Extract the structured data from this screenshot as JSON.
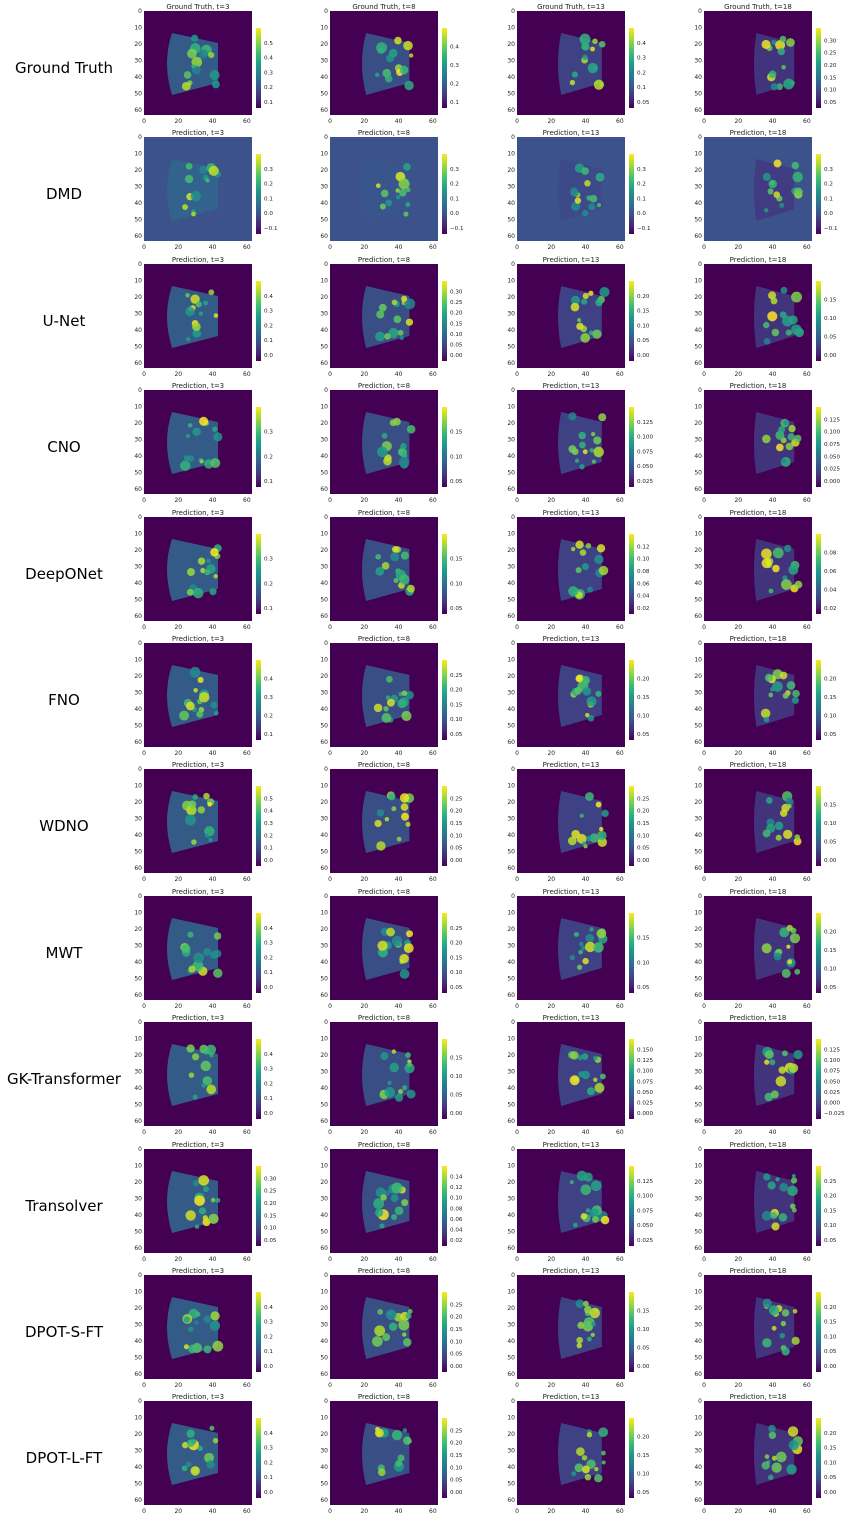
{
  "colors": {
    "viridis": [
      "#440154",
      "#482878",
      "#3e4a89",
      "#31688e",
      "#26828e",
      "#1f9e89",
      "#35b779",
      "#6ece58",
      "#b5de2b",
      "#fde725"
    ],
    "background_dmd": "#3b528b"
  },
  "chart_data": {
    "type": "heatmap",
    "colormap": "viridis",
    "grid": "off",
    "x_ticks": [
      "0",
      "20",
      "40",
      "60"
    ],
    "y_ticks": [
      "0",
      "10",
      "20",
      "30",
      "40",
      "50",
      "60"
    ],
    "rows": [
      {
        "label": "Ground Truth",
        "titles": [
          "Ground Truth, t=3",
          "Ground Truth, t=8",
          "Ground Truth, t=13",
          "Ground Truth, t=18"
        ],
        "colorbars": [
          [
            "0.1",
            "0.2",
            "0.3",
            "0.4",
            "0.5"
          ],
          [
            "0.1",
            "0.2",
            "0.3",
            "0.4"
          ],
          [
            "0.05",
            "0.1",
            "0.2",
            "0.3",
            "0.4"
          ],
          [
            "0.05",
            "0.10",
            "0.15",
            "0.20",
            "0.25",
            "0.30"
          ]
        ]
      },
      {
        "label": "DMD",
        "titles": [
          "Prediction, t=3",
          "Prediction, t=8",
          "Prediction, t=13",
          "Prediction, t=18"
        ],
        "colorbars": [
          [
            "−0.1",
            "0.0",
            "0.1",
            "0.2",
            "0.3"
          ],
          [
            "−0.1",
            "0.0",
            "0.1",
            "0.2",
            "0.3"
          ],
          [
            "−0.1",
            "0.0",
            "0.1",
            "0.2",
            "0.3"
          ],
          [
            "−0.1",
            "0.0",
            "0.1",
            "0.2",
            "0.3"
          ]
        ]
      },
      {
        "label": "U-Net",
        "titles": [
          "Prediction, t=3",
          "Prediction, t=8",
          "Prediction, t=13",
          "Prediction, t=18"
        ],
        "colorbars": [
          [
            "0.0",
            "0.1",
            "0.2",
            "0.3",
            "0.4"
          ],
          [
            "0.00",
            "0.05",
            "0.10",
            "0.15",
            "0.20",
            "0.25",
            "0.30"
          ],
          [
            "0.00",
            "0.05",
            "0.10",
            "0.15",
            "0.20"
          ],
          [
            "0.00",
            "0.05",
            "0.10",
            "0.15"
          ]
        ]
      },
      {
        "label": "CNO",
        "titles": [
          "Prediction, t=3",
          "Prediction, t=8",
          "Prediction, t=13",
          "Prediction, t=18"
        ],
        "colorbars": [
          [
            "0.1",
            "0.2",
            "0.3"
          ],
          [
            "0.05",
            "0.10",
            "0.15"
          ],
          [
            "0.025",
            "0.050",
            "0.075",
            "0.100",
            "0.125"
          ],
          [
            "0.000",
            "0.025",
            "0.050",
            "0.075",
            "0.100",
            "0.125"
          ]
        ]
      },
      {
        "label": "DeepONet",
        "titles": [
          "Prediction, t=3",
          "Prediction, t=8",
          "Prediction, t=13",
          "Prediction, t=18"
        ],
        "colorbars": [
          [
            "0.1",
            "0.2",
            "0.3"
          ],
          [
            "0.05",
            "0.10",
            "0.15"
          ],
          [
            "0.02",
            "0.04",
            "0.06",
            "0.08",
            "0.10",
            "0.12"
          ],
          [
            "0.02",
            "0.04",
            "0.06",
            "0.08"
          ]
        ]
      },
      {
        "label": "FNO",
        "titles": [
          "Prediction, t=3",
          "Prediction, t=8",
          "Prediction, t=13",
          "Prediction, t=18"
        ],
        "colorbars": [
          [
            "0.1",
            "0.2",
            "0.3",
            "0.4"
          ],
          [
            "0.05",
            "0.10",
            "0.15",
            "0.20",
            "0.25"
          ],
          [
            "0.05",
            "0.10",
            "0.15",
            "0.20"
          ],
          [
            "0.05",
            "0.10",
            "0.15",
            "0.20"
          ]
        ]
      },
      {
        "label": "WDNO",
        "titles": [
          "Prediction, t=3",
          "Prediction, t=8",
          "Prediction, t=13",
          "Prediction, t=18"
        ],
        "colorbars": [
          [
            "0.0",
            "0.1",
            "0.2",
            "0.3",
            "0.4",
            "0.5"
          ],
          [
            "0.00",
            "0.05",
            "0.10",
            "0.15",
            "0.20",
            "0.25"
          ],
          [
            "0.00",
            "0.05",
            "0.10",
            "0.15",
            "0.20",
            "0.25"
          ],
          [
            "0.00",
            "0.05",
            "0.10",
            "0.15"
          ]
        ]
      },
      {
        "label": "MWT",
        "titles": [
          "Prediction, t=3",
          "Prediction, t=8",
          "Prediction, t=13",
          "Prediction, t=18"
        ],
        "colorbars": [
          [
            "0.0",
            "0.1",
            "0.2",
            "0.3",
            "0.4"
          ],
          [
            "0.05",
            "0.10",
            "0.15",
            "0.20",
            "0.25"
          ],
          [
            "0.05",
            "0.10",
            "0.15"
          ],
          [
            "0.05",
            "0.10",
            "0.15",
            "0.20"
          ]
        ]
      },
      {
        "label": "GK-Transformer",
        "titles": [
          "Prediction, t=3",
          "Prediction, t=8",
          "Prediction, t=13",
          "Prediction, t=18"
        ],
        "colorbars": [
          [
            "0.0",
            "0.1",
            "0.2",
            "0.3",
            "0.4"
          ],
          [
            "0.00",
            "0.05",
            "0.10",
            "0.15"
          ],
          [
            "0.000",
            "0.025",
            "0.050",
            "0.075",
            "0.100",
            "0.125",
            "0.150"
          ],
          [
            "−0.025",
            "0.000",
            "0.025",
            "0.050",
            "0.075",
            "0.100",
            "0.125"
          ]
        ]
      },
      {
        "label": "Transolver",
        "titles": [
          "Prediction, t=3",
          "Prediction, t=8",
          "Prediction, t=13",
          "Prediction, t=18"
        ],
        "colorbars": [
          [
            "0.05",
            "0.10",
            "0.15",
            "0.20",
            "0.25",
            "0.30"
          ],
          [
            "0.02",
            "0.04",
            "0.06",
            "0.08",
            "0.10",
            "0.12",
            "0.14"
          ],
          [
            "0.025",
            "0.050",
            "0.075",
            "0.100",
            "0.125"
          ],
          [
            "0.05",
            "0.10",
            "0.15",
            "0.20",
            "0.25"
          ]
        ]
      },
      {
        "label": "DPOT-S-FT",
        "titles": [
          "Prediction, t=3",
          "Prediction, t=8",
          "Prediction, t=13",
          "Prediction, t=18"
        ],
        "colorbars": [
          [
            "0.0",
            "0.1",
            "0.2",
            "0.3",
            "0.4"
          ],
          [
            "0.00",
            "0.05",
            "0.10",
            "0.15",
            "0.20",
            "0.25"
          ],
          [
            "0.00",
            "0.05",
            "0.10",
            "0.15"
          ],
          [
            "0.00",
            "0.05",
            "0.10",
            "0.15",
            "0.20"
          ]
        ]
      },
      {
        "label": "DPOT-L-FT",
        "titles": [
          "Prediction, t=3",
          "Prediction, t=8",
          "Prediction, t=13",
          "Prediction, t=18"
        ],
        "colorbars": [
          [
            "0.0",
            "0.1",
            "0.2",
            "0.3",
            "0.4"
          ],
          [
            "0.00",
            "0.05",
            "0.10",
            "0.15",
            "0.20",
            "0.25"
          ],
          [
            "0.05",
            "0.10",
            "0.15",
            "0.20"
          ],
          [
            "0.00",
            "0.05",
            "0.10",
            "0.15",
            "0.20"
          ]
        ]
      }
    ]
  }
}
